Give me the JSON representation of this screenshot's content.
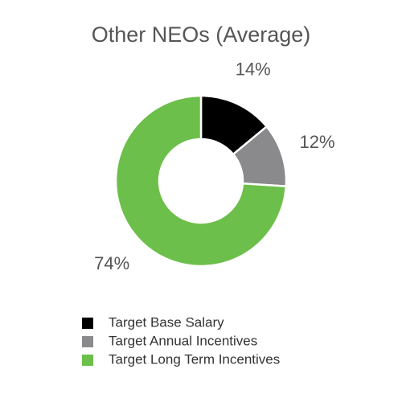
{
  "chart_data": {
    "type": "donut",
    "title": "Other NEOs (Average)",
    "categories": [
      "Target Base Salary",
      "Target Annual Incentives",
      "Target Long Term Incentives"
    ],
    "values": [
      14,
      12,
      74
    ],
    "value_labels": [
      "14%",
      "12%",
      "74%"
    ],
    "colors": [
      "#000000",
      "#8a8a8c",
      "#6cbf4a"
    ],
    "legend": "bottom"
  }
}
